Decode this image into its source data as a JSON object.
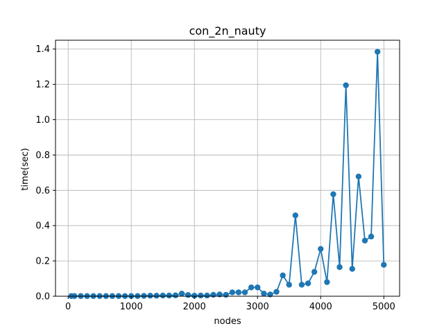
{
  "chart_data": {
    "type": "line",
    "title": "con_2n_nauty",
    "xlabel": "nodes",
    "ylabel": "time(sec)",
    "xlim": [
      -200,
      5250
    ],
    "ylim": [
      0,
      1.45
    ],
    "xticks": [
      0,
      1000,
      2000,
      3000,
      4000,
      5000
    ],
    "yticks": [
      0.0,
      0.2,
      0.4,
      0.6,
      0.8,
      1.0,
      1.2,
      1.4
    ],
    "xtick_labels": [
      "0",
      "1000",
      "2000",
      "3000",
      "4000",
      "5000"
    ],
    "ytick_labels": [
      "0.0",
      "0.2",
      "0.4",
      "0.6",
      "0.8",
      "1.0",
      "1.2",
      "1.4"
    ],
    "grid": true,
    "series_color": "#1f77b4",
    "markers": true,
    "x": [
      50,
      100,
      200,
      300,
      400,
      500,
      600,
      700,
      800,
      900,
      1000,
      1100,
      1200,
      1300,
      1400,
      1500,
      1600,
      1700,
      1800,
      1900,
      2000,
      2100,
      2200,
      2300,
      2400,
      2500,
      2600,
      2700,
      2800,
      2900,
      3000,
      3100,
      3200,
      3300,
      3400,
      3500,
      3600,
      3700,
      3800,
      3900,
      4000,
      4100,
      4200,
      4300,
      4400,
      4500,
      4600,
      4700,
      4800,
      4900,
      5000
    ],
    "y": [
      0.001,
      0.001,
      0.001,
      0.001,
      0.001,
      0.001,
      0.001,
      0.001,
      0.001,
      0.001,
      0.001,
      0.001,
      0.002,
      0.003,
      0.003,
      0.004,
      0.004,
      0.005,
      0.015,
      0.007,
      0.003,
      0.004,
      0.004,
      0.008,
      0.01,
      0.008,
      0.022,
      0.022,
      0.022,
      0.05,
      0.05,
      0.015,
      0.01,
      0.025,
      0.118,
      0.065,
      0.458,
      0.065,
      0.073,
      0.138,
      0.268,
      0.08,
      0.578,
      0.165,
      1.195,
      0.155,
      0.678,
      0.315,
      0.338,
      1.385,
      0.178
    ]
  }
}
